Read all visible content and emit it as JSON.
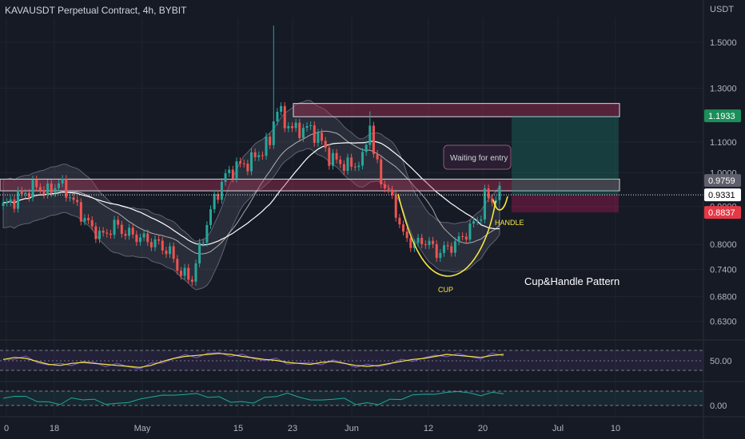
{
  "header": {
    "symbol_title": "KAVAUSDT Perpetual Contract, 4h, BYBIT",
    "currency": "USDT"
  },
  "colors": {
    "background": "#161a25",
    "up": "#26a69a",
    "down": "#ef5350",
    "band": "#6f7385",
    "ma": "#e6e6e6",
    "zone": "#b2325a",
    "target": "#1b8f7a",
    "stop": "#c2185b",
    "pattern": "#f5e642",
    "rsi": "#7e57c2",
    "rsi_ma": "#f5e642",
    "osc": "#26a69a"
  },
  "chart_data": {
    "type": "candlestick",
    "x_tick_labels": [
      "0",
      "18",
      "May",
      "15",
      "23",
      "Jun",
      "12",
      "20",
      "Jul",
      "10"
    ],
    "y_tick_labels": [
      "1.5000",
      "1.3000",
      "1.1000",
      "1.0000",
      "0.9000",
      "0.8000",
      "0.7400",
      "0.6800",
      "0.6300"
    ],
    "y_tick_values": [
      1.5,
      1.3,
      1.1,
      1.0,
      0.9,
      0.8,
      0.74,
      0.68,
      0.63
    ],
    "ylim": [
      0.6,
      1.62
    ],
    "y_scale": "log",
    "price_labels": {
      "upper_band": "0.9759",
      "last_price": "0.9331",
      "take_profit": "1.1933",
      "stop_loss": "0.8837"
    },
    "resistance_zone": [
      1.19,
      1.24
    ],
    "support_zone": [
      0.945,
      0.98
    ],
    "target_zone": [
      0.9331,
      1.1933
    ],
    "stop_zone": [
      0.8837,
      0.9331
    ],
    "price_path": [
      [
        0,
        0.9
      ],
      [
        3,
        0.92
      ],
      [
        6,
        0.94
      ],
      [
        9,
        0.96
      ],
      [
        12,
        0.94
      ],
      [
        15,
        0.97
      ],
      [
        18,
        0.93
      ],
      [
        21,
        0.88
      ],
      [
        24,
        0.84
      ],
      [
        27,
        0.82
      ],
      [
        30,
        0.85
      ],
      [
        33,
        0.83
      ],
      [
        36,
        0.82
      ],
      [
        39,
        0.81
      ],
      [
        42,
        0.8
      ],
      [
        45,
        0.78
      ],
      [
        48,
        0.73
      ],
      [
        51,
        0.72
      ],
      [
        54,
        0.82
      ],
      [
        57,
        0.92
      ],
      [
        60,
        0.99
      ],
      [
        63,
        1.02
      ],
      [
        66,
        1.03
      ],
      [
        69,
        1.06
      ],
      [
        72,
        1.1
      ],
      [
        73,
        1.18
      ],
      [
        74,
        1.22
      ],
      [
        76,
        1.17
      ],
      [
        79,
        1.14
      ],
      [
        82,
        1.15
      ],
      [
        85,
        1.12
      ],
      [
        88,
        1.05
      ],
      [
        91,
        1.03
      ],
      [
        94,
        1.02
      ],
      [
        97,
        1.04
      ],
      [
        98,
        1.1
      ],
      [
        99,
        1.17
      ],
      [
        100,
        1.06
      ],
      [
        102,
        0.98
      ],
      [
        105,
        0.92
      ],
      [
        108,
        0.82
      ],
      [
        111,
        0.8
      ],
      [
        114,
        0.81
      ],
      [
        117,
        0.78
      ],
      [
        120,
        0.79
      ],
      [
        123,
        0.81
      ],
      [
        126,
        0.84
      ],
      [
        129,
        0.88
      ],
      [
        130,
        0.93
      ],
      [
        132,
        0.92
      ],
      [
        134,
        0.935
      ]
    ],
    "spike": {
      "x": 73,
      "high": 1.58
    },
    "wick_high": {
      "x": 99,
      "high": 1.21
    },
    "annotations": {
      "callout": "Waiting for entry",
      "cup": "CUP",
      "handle": "HANDLE",
      "pattern": "Cup&Handle Pattern"
    },
    "rsi": {
      "level_label": "50.00",
      "values": [
        52,
        56,
        54,
        48,
        42,
        40,
        44,
        46,
        44,
        42,
        40,
        38,
        36,
        40,
        48,
        54,
        58,
        60,
        62,
        64,
        62,
        58,
        55,
        52,
        50,
        46,
        44,
        42,
        46,
        48,
        44,
        40,
        38,
        40,
        44,
        48,
        52,
        54,
        58,
        62,
        60,
        58,
        56,
        60,
        62
      ]
    },
    "oscillator": {
      "level_label": "0.00",
      "values": [
        0.1,
        0.2,
        0.15,
        0.0,
        -0.1,
        -0.1,
        0.05,
        0.1,
        0.0,
        -0.1,
        -0.15,
        -0.05,
        0.05,
        0.15,
        0.25,
        0.2,
        0.3,
        0.25,
        0.2,
        0.1,
        0.0,
        -0.1,
        -0.05,
        0.1,
        0.2,
        0.3,
        0.15,
        0.05,
        0.0,
        0.1,
        0.05,
        -0.1,
        -0.15,
        -0.1,
        0.0,
        0.1,
        0.2,
        0.3,
        0.25,
        0.35,
        0.4,
        0.3,
        0.25,
        0.3,
        0.35
      ]
    }
  }
}
